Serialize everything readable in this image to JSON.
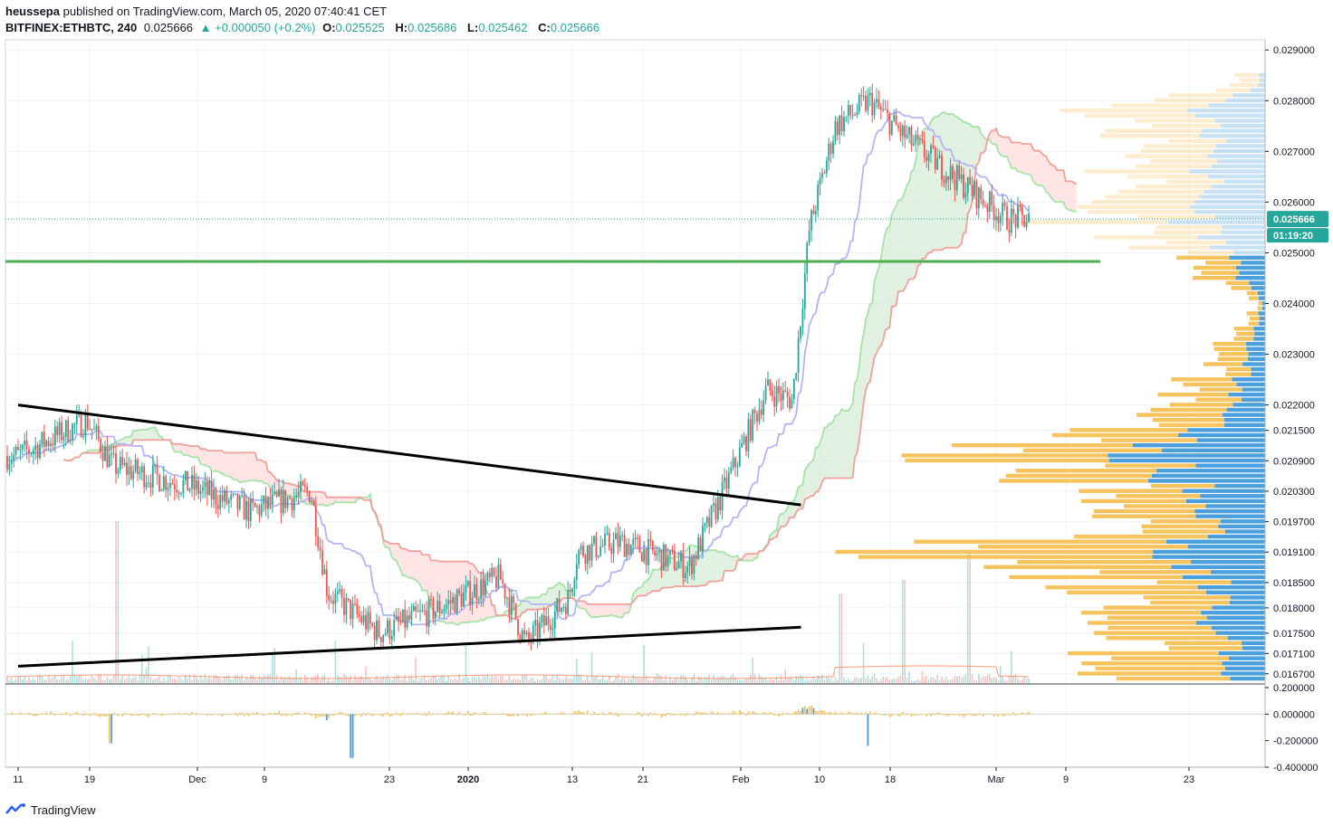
{
  "header": {
    "publisher": "heussepa",
    "published_text": "published on TradingView.com, March 05, 2020 07:40:41 CET",
    "symbol": "BITFINEX:ETHBTC, 240",
    "last": "0.025666",
    "change": "▲ +0.000050 (+0.2%)",
    "open_label": "O:",
    "open": "0.025525",
    "high_label": "H:",
    "high": "0.025686",
    "low_label": "L:",
    "low": "0.025462",
    "close_label": "C:",
    "close": "0.025666"
  },
  "footer": {
    "brand": "TradingView"
  },
  "price_badge": {
    "price": "0.025666",
    "countdown": "01:19:20"
  },
  "colors": {
    "up": "#26a69a",
    "down": "#ef5350",
    "tenkan": "#b2b5f5",
    "kijun": "#f4a09a",
    "span_a": "#a5e3a7",
    "span_b": "#f4a09a",
    "cloud_up": "#c8e6c9",
    "cloud_down": "#ffcdd2",
    "trend": "#000000",
    "support": "#4caf50",
    "vp_up": "#f7c35c",
    "vp_down": "#4a9fdc",
    "badge": "#26a69a"
  },
  "chart_data": {
    "type": "candlestick",
    "symbol": "ETHBTC",
    "exchange": "BITFINEX",
    "timeframe": "240",
    "ylim": [
      0.0165,
      0.0292
    ],
    "y_ticks": [
      "0.029000",
      "0.028000",
      "0.027000",
      "0.026000",
      "0.025000",
      "0.024000",
      "0.023000",
      "0.022000",
      "0.021500",
      "0.020900",
      "0.020300",
      "0.019700",
      "0.019100",
      "0.018500",
      "0.018000",
      "0.017500",
      "0.017100",
      "0.016700"
    ],
    "x_ticks": [
      "11",
      "19",
      "Dec",
      "9",
      "23",
      "2020",
      "13",
      "21",
      "Feb",
      "10",
      "18",
      "Mar",
      "9",
      "23"
    ],
    "x_ticks_bold": [
      "2020"
    ],
    "price_path": [
      {
        "date": "2019-11-11",
        "price": 0.021
      },
      {
        "date": "2019-11-19",
        "price": 0.0217
      },
      {
        "date": "2019-11-22",
        "price": 0.0208
      },
      {
        "date": "2019-12-01",
        "price": 0.0204
      },
      {
        "date": "2019-12-08",
        "price": 0.0199
      },
      {
        "date": "2019-12-15",
        "price": 0.0203
      },
      {
        "date": "2019-12-17",
        "price": 0.0183
      },
      {
        "date": "2019-12-23",
        "price": 0.0175
      },
      {
        "date": "2019-12-30",
        "price": 0.018
      },
      {
        "date": "2020-01-06",
        "price": 0.0186
      },
      {
        "date": "2020-01-09",
        "price": 0.0173
      },
      {
        "date": "2020-01-14",
        "price": 0.0182
      },
      {
        "date": "2020-01-15",
        "price": 0.0191
      },
      {
        "date": "2020-01-20",
        "price": 0.0193
      },
      {
        "date": "2020-01-28",
        "price": 0.0188
      },
      {
        "date": "2020-02-01",
        "price": 0.0203
      },
      {
        "date": "2020-02-06",
        "price": 0.0223
      },
      {
        "date": "2020-02-09",
        "price": 0.0221
      },
      {
        "date": "2020-02-11",
        "price": 0.0255
      },
      {
        "date": "2020-02-14",
        "price": 0.0275
      },
      {
        "date": "2020-02-18",
        "price": 0.028
      },
      {
        "date": "2020-02-22",
        "price": 0.0273
      },
      {
        "date": "2020-02-27",
        "price": 0.0266
      },
      {
        "date": "2020-03-05",
        "price": 0.025666
      }
    ],
    "trendline_upper": [
      {
        "date": "2019-11-11",
        "price": 0.022
      },
      {
        "date": "2020-02-10",
        "price": 0.02003
      }
    ],
    "trendline_lower": [
      {
        "date": "2019-11-11",
        "price": 0.01685
      },
      {
        "date": "2020-02-10",
        "price": 0.01762
      }
    ],
    "support_level": 0.02483,
    "oscillator": {
      "ylim": [
        -0.4,
        0.2
      ],
      "y_ticks": [
        "0.200000",
        "0.000000",
        "-0.200000",
        "-0.400000"
      ]
    },
    "volume_profile": [
      {
        "price": 0.0283,
        "up": 30,
        "down": 8
      },
      {
        "price": 0.0276,
        "up": 150,
        "down": 95
      },
      {
        "price": 0.027,
        "up": 85,
        "down": 60
      },
      {
        "price": 0.0262,
        "up": 110,
        "down": 78
      },
      {
        "price": 0.0256,
        "up": 140,
        "down": 90
      },
      {
        "price": 0.025,
        "up": 70,
        "down": 48
      },
      {
        "price": 0.024,
        "up": 6,
        "down": 4
      },
      {
        "price": 0.0228,
        "up": 45,
        "down": 26
      },
      {
        "price": 0.0218,
        "up": 80,
        "down": 40
      },
      {
        "price": 0.021,
        "up": 210,
        "down": 160
      },
      {
        "price": 0.0203,
        "up": 100,
        "down": 80
      },
      {
        "price": 0.0196,
        "up": 90,
        "down": 55
      },
      {
        "price": 0.0191,
        "up": 340,
        "down": 120
      },
      {
        "price": 0.0188,
        "up": 180,
        "down": 90
      },
      {
        "price": 0.0182,
        "up": 120,
        "down": 48
      },
      {
        "price": 0.0177,
        "up": 110,
        "down": 70
      },
      {
        "price": 0.0174,
        "up": 130,
        "down": 40
      }
    ]
  }
}
